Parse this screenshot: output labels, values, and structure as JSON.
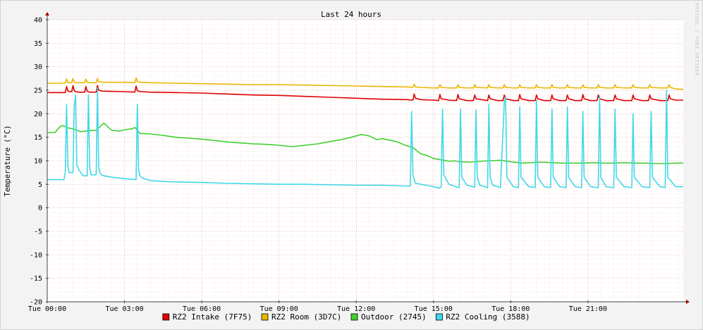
{
  "chart_data": {
    "type": "line",
    "title": "Last 24 hours",
    "ylabel": "Temperature (°C)",
    "watermark": "RRDTOOL / TOBI OETIKER",
    "ylim": [
      -20,
      40
    ],
    "yticks": [
      -20,
      -15,
      -10,
      -5,
      0,
      5,
      10,
      15,
      20,
      25,
      30,
      35,
      40
    ],
    "xlim": [
      0,
      24.7
    ],
    "xticks": [
      {
        "x": 0,
        "label": "Tue 00:00"
      },
      {
        "x": 3,
        "label": "Tue 03:00"
      },
      {
        "x": 6,
        "label": "Tue 06:00"
      },
      {
        "x": 9,
        "label": "Tue 09:00"
      },
      {
        "x": 12,
        "label": "Tue 12:00"
      },
      {
        "x": 15,
        "label": "Tue 15:00"
      },
      {
        "x": 18,
        "label": "Tue 18:00"
      },
      {
        "x": 21,
        "label": "Tue 21:00"
      }
    ],
    "grid": true,
    "legend_position": "bottom",
    "series": [
      {
        "name": "RZ2 Intake (7F75)",
        "color": "#e00000",
        "x": [
          0,
          0.7,
          0.75,
          0.8,
          0.95,
          1.0,
          1.05,
          1.1,
          1.2,
          1.45,
          1.5,
          1.55,
          1.65,
          1.9,
          1.95,
          2.0,
          2.15,
          3.0,
          3.4,
          3.45,
          3.5,
          3.65,
          4.0,
          5.0,
          6.0,
          7.0,
          8.0,
          9.0,
          10.0,
          11.0,
          12.0,
          13.0,
          14.0,
          14.2,
          14.25,
          14.3,
          14.5,
          15.0,
          15.2,
          15.25,
          15.3,
          15.6,
          15.9,
          15.95,
          16.0,
          16.3,
          16.55,
          16.6,
          16.65,
          17.1,
          17.15,
          17.2,
          17.5,
          17.7,
          17.75,
          17.8,
          18.1,
          18.3,
          18.35,
          18.4,
          18.7,
          18.95,
          19.0,
          19.05,
          19.3,
          19.55,
          19.6,
          19.65,
          19.9,
          20.15,
          20.2,
          20.25,
          20.5,
          20.75,
          20.8,
          20.85,
          21.1,
          21.35,
          21.4,
          21.45,
          21.7,
          22.0,
          22.05,
          22.1,
          22.4,
          22.7,
          22.75,
          22.8,
          23.1,
          23.35,
          23.4,
          23.45,
          23.8,
          24.0,
          24.1,
          24.15,
          24.2,
          24.4,
          24.7
        ],
        "y": [
          24.5,
          24.5,
          25.8,
          24.8,
          24.7,
          26.0,
          24.9,
          24.7,
          24.6,
          24.6,
          25.8,
          24.8,
          24.6,
          24.6,
          26.0,
          25.0,
          24.8,
          24.7,
          24.6,
          25.9,
          24.9,
          24.7,
          24.6,
          24.5,
          24.4,
          24.2,
          24.0,
          23.9,
          23.7,
          23.5,
          23.3,
          23.1,
          23.0,
          22.9,
          24.2,
          23.3,
          23.0,
          22.9,
          22.8,
          24.1,
          23.2,
          22.9,
          22.8,
          24.1,
          23.2,
          22.8,
          22.8,
          24.0,
          23.2,
          22.8,
          24.0,
          23.2,
          22.8,
          22.8,
          24.0,
          23.2,
          22.8,
          22.8,
          24.1,
          23.2,
          22.8,
          22.8,
          24.0,
          23.2,
          22.8,
          22.8,
          24.0,
          23.2,
          22.8,
          22.8,
          24.0,
          23.2,
          22.8,
          22.8,
          24.1,
          23.2,
          22.8,
          22.8,
          24.0,
          23.2,
          22.8,
          22.8,
          24.0,
          23.2,
          22.8,
          22.8,
          24.0,
          23.2,
          22.8,
          22.8,
          24.0,
          23.2,
          22.8,
          22.8,
          22.8,
          24.0,
          23.2,
          22.9,
          22.9
        ]
      },
      {
        "name": "RZ2 Room (3D7C)",
        "color": "#e8b800",
        "x": [
          0,
          0.7,
          0.75,
          0.8,
          0.95,
          1.0,
          1.05,
          1.1,
          1.2,
          1.45,
          1.5,
          1.55,
          1.65,
          1.9,
          1.95,
          2.0,
          2.15,
          3.0,
          3.4,
          3.45,
          3.5,
          3.65,
          4.0,
          5.0,
          6.0,
          7.0,
          8.0,
          9.0,
          10.0,
          11.0,
          12.0,
          13.0,
          14.0,
          14.2,
          14.25,
          14.3,
          14.5,
          15.0,
          15.2,
          15.25,
          15.3,
          15.6,
          15.9,
          15.95,
          16.0,
          16.3,
          16.55,
          16.6,
          16.65,
          17.1,
          17.15,
          17.2,
          17.5,
          17.7,
          17.75,
          17.8,
          18.1,
          18.3,
          18.35,
          18.4,
          18.7,
          18.95,
          19.0,
          19.05,
          19.3,
          19.55,
          19.6,
          19.65,
          19.9,
          20.15,
          20.2,
          20.25,
          20.5,
          20.75,
          20.8,
          20.85,
          21.1,
          21.35,
          21.4,
          21.45,
          21.7,
          22.0,
          22.05,
          22.1,
          22.4,
          22.7,
          22.75,
          22.8,
          23.1,
          23.35,
          23.4,
          23.45,
          23.8,
          24.0,
          24.1,
          24.15,
          24.2,
          24.4,
          24.7
        ],
        "y": [
          26.5,
          26.5,
          27.4,
          26.6,
          26.6,
          27.5,
          26.7,
          26.6,
          26.6,
          26.6,
          27.4,
          26.7,
          26.6,
          26.6,
          27.5,
          26.8,
          26.7,
          26.7,
          26.6,
          27.6,
          26.8,
          26.7,
          26.6,
          26.5,
          26.4,
          26.3,
          26.2,
          26.2,
          26.1,
          26.0,
          25.9,
          25.8,
          25.7,
          25.6,
          26.3,
          25.7,
          25.6,
          25.5,
          25.5,
          26.2,
          25.6,
          25.5,
          25.5,
          26.2,
          25.6,
          25.5,
          25.5,
          26.2,
          25.6,
          25.5,
          26.2,
          25.6,
          25.5,
          25.5,
          26.2,
          25.6,
          25.5,
          25.5,
          26.2,
          25.6,
          25.5,
          25.5,
          26.2,
          25.6,
          25.5,
          25.5,
          26.2,
          25.6,
          25.5,
          25.5,
          26.2,
          25.6,
          25.5,
          25.5,
          26.2,
          25.6,
          25.5,
          25.5,
          26.2,
          25.6,
          25.5,
          25.5,
          26.2,
          25.6,
          25.5,
          25.5,
          26.2,
          25.6,
          25.5,
          25.5,
          26.2,
          25.6,
          25.5,
          25.5,
          25.5,
          26.2,
          25.6,
          25.3,
          25.2
        ]
      },
      {
        "name": "Outdoor (2745)",
        "color": "#40d030",
        "x": [
          0,
          0.3,
          0.5,
          0.6,
          0.8,
          1.0,
          1.3,
          1.6,
          1.9,
          2.2,
          2.5,
          2.8,
          3.0,
          3.3,
          3.4,
          3.6,
          4.0,
          4.5,
          5.0,
          5.5,
          6.0,
          6.5,
          7.0,
          7.5,
          8.0,
          8.5,
          9.0,
          9.5,
          10.0,
          10.5,
          11.0,
          11.5,
          11.8,
          12.2,
          12.5,
          12.8,
          13.0,
          13.3,
          13.6,
          13.9,
          14.2,
          14.5,
          14.8,
          15.0,
          15.3,
          15.6,
          15.8,
          16.0,
          16.4,
          16.8,
          17.2,
          17.6,
          18.0,
          18.4,
          18.8,
          19.2,
          19.6,
          20.0,
          20.4,
          20.8,
          21.2,
          21.6,
          22.0,
          22.4,
          22.8,
          23.2,
          23.6,
          24.0,
          24.4,
          24.7
        ],
        "y": [
          16.0,
          16.0,
          17.3,
          17.5,
          17.0,
          16.8,
          16.2,
          16.4,
          16.5,
          18.0,
          16.5,
          16.3,
          16.6,
          16.8,
          17.1,
          15.8,
          15.7,
          15.4,
          15.0,
          14.8,
          14.6,
          14.3,
          14.0,
          13.8,
          13.6,
          13.5,
          13.3,
          13.0,
          13.3,
          13.6,
          14.1,
          14.6,
          15.0,
          15.6,
          15.3,
          14.5,
          14.7,
          14.4,
          14.0,
          13.3,
          12.8,
          11.5,
          11.0,
          10.5,
          10.2,
          9.9,
          10.0,
          9.8,
          9.7,
          9.9,
          10.0,
          10.1,
          9.8,
          9.5,
          9.6,
          9.7,
          9.6,
          9.5,
          9.5,
          9.5,
          9.6,
          9.5,
          9.5,
          9.6,
          9.5,
          9.5,
          9.4,
          9.4,
          9.5,
          9.5
        ]
      },
      {
        "name": "RZ2 Cooling (3588)",
        "color": "#40d8e8",
        "x": [
          0,
          0.65,
          0.7,
          0.75,
          0.8,
          0.85,
          1.0,
          1.05,
          1.1,
          1.15,
          1.3,
          1.4,
          1.55,
          1.6,
          1.65,
          1.7,
          1.9,
          1.95,
          2.0,
          2.05,
          2.1,
          2.2,
          2.5,
          3.0,
          3.45,
          3.5,
          3.55,
          3.6,
          3.7,
          4.0,
          4.5,
          5.0,
          6.0,
          7.0,
          8.0,
          9.0,
          10.0,
          11.0,
          12.0,
          13.0,
          14.0,
          14.1,
          14.15,
          14.2,
          14.3,
          14.5,
          14.9,
          15.0,
          15.2,
          15.3,
          15.35,
          15.4,
          15.6,
          15.9,
          16.0,
          16.05,
          16.1,
          16.3,
          16.6,
          16.65,
          16.7,
          16.8,
          17.1,
          17.15,
          17.2,
          17.3,
          17.6,
          17.75,
          17.8,
          17.85,
          18.1,
          18.3,
          18.35,
          18.4,
          18.7,
          18.95,
          19.0,
          19.05,
          19.3,
          19.55,
          19.6,
          19.65,
          19.9,
          20.15,
          20.2,
          20.25,
          20.5,
          20.75,
          20.8,
          20.85,
          21.1,
          21.4,
          21.45,
          21.5,
          21.7,
          22.0,
          22.05,
          22.1,
          22.4,
          22.7,
          22.75,
          22.8,
          23.1,
          23.4,
          23.45,
          23.5,
          23.8,
          24.0,
          24.05,
          24.1,
          24.4,
          24.7
        ],
        "y": [
          6.0,
          6.0,
          7.5,
          22.0,
          9.0,
          7.5,
          7.5,
          21.5,
          24.0,
          9.0,
          7.5,
          6.8,
          6.8,
          24.0,
          8.5,
          7.0,
          7.0,
          25.5,
          8.5,
          7.5,
          7.0,
          6.8,
          6.5,
          6.2,
          6.0,
          22.0,
          8.0,
          6.8,
          6.3,
          5.8,
          5.6,
          5.5,
          5.4,
          5.2,
          5.1,
          5.0,
          5.0,
          4.9,
          4.8,
          4.8,
          4.6,
          4.6,
          20.5,
          7.0,
          5.2,
          5.0,
          4.6,
          4.5,
          4.2,
          4.4,
          21.0,
          7.0,
          5.0,
          4.4,
          4.3,
          21.0,
          6.5,
          4.8,
          4.4,
          20.8,
          6.5,
          4.8,
          4.3,
          22.0,
          6.5,
          4.8,
          4.3,
          22.5,
          23.5,
          6.5,
          4.5,
          4.3,
          21.5,
          6.5,
          4.5,
          4.3,
          23.0,
          6.5,
          4.5,
          4.3,
          21.0,
          6.5,
          4.5,
          4.3,
          21.5,
          6.5,
          4.5,
          4.3,
          20.5,
          6.5,
          4.5,
          4.3,
          23.8,
          6.5,
          4.5,
          4.3,
          21.0,
          6.5,
          4.5,
          4.3,
          20.0,
          6.5,
          4.5,
          4.3,
          20.5,
          6.5,
          4.5,
          4.3,
          25.0,
          6.5,
          4.5,
          4.5
        ]
      }
    ]
  }
}
